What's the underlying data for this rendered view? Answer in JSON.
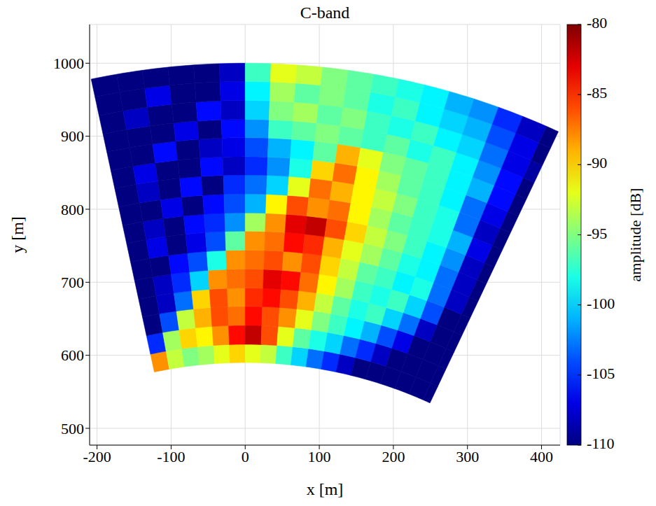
{
  "chart_data": {
    "type": "heatmap",
    "title": "C-band",
    "x_label": "x [m]",
    "y_label": "y [m]",
    "xlim": [
      -210,
      425
    ],
    "ylim": [
      477,
      1053
    ],
    "xticks": [
      -200,
      -100,
      0,
      100,
      200,
      300,
      400
    ],
    "yticks": [
      500,
      600,
      700,
      800,
      900,
      1000
    ],
    "grid": true,
    "range_edges": [
      590,
      615,
      641,
      667,
      692,
      718,
      744,
      770,
      795,
      821,
      847,
      872,
      898,
      923,
      949,
      975,
      1000
    ],
    "angle_edges": [
      -12,
      -10,
      -8,
      -6,
      -4,
      -2,
      0,
      2,
      4,
      6,
      8,
      10,
      12,
      14,
      16,
      18,
      20,
      22,
      24,
      25
    ],
    "cells": [
      [
        -88,
        -93,
        -95,
        -94,
        -92,
        -90,
        -92,
        -93,
        -97,
        -100,
        -103,
        -105,
        -108,
        -110,
        -110,
        -110,
        -110,
        -110,
        -110
      ],
      [
        -105,
        -94,
        -90,
        -91,
        -88,
        -84,
        -82,
        -86,
        -92,
        -96,
        -98,
        -100,
        -103,
        -105,
        -108,
        -110,
        -110,
        -110,
        -110
      ],
      [
        -110,
        -104,
        -93,
        -89,
        -86,
        -87,
        -84,
        -86,
        -88,
        -92,
        -95,
        -97,
        -99,
        -101,
        -104,
        -107,
        -110,
        -110,
        -110
      ],
      [
        -110,
        -108,
        -103,
        -90,
        -86,
        -88,
        -85,
        -84,
        -86,
        -89,
        -93,
        -96,
        -98,
        -97,
        -100,
        -103,
        -108,
        -110,
        -110
      ],
      [
        -110,
        -108,
        -105,
        -100,
        -88,
        -87,
        -86,
        -83,
        -84,
        -87,
        -91,
        -94,
        -97,
        -98,
        -97,
        -100,
        -104,
        -110,
        -110
      ],
      [
        -110,
        -110,
        -106,
        -104,
        -98,
        -88,
        -87,
        -86,
        -88,
        -86,
        -90,
        -93,
        -96,
        -97,
        -99,
        -98,
        -103,
        -108,
        -110
      ],
      [
        -110,
        -107,
        -110,
        -107,
        -104,
        -96,
        -88,
        -87,
        -84,
        -85,
        -89,
        -92,
        -94,
        -96,
        -98,
        -99,
        -103,
        -108,
        -110
      ],
      [
        -110,
        -108,
        -110,
        -106,
        -105,
        -102,
        -94,
        -88,
        -83,
        -82,
        -86,
        -90,
        -93,
        -95,
        -97,
        -99,
        -102,
        -108,
        -110
      ],
      [
        -110,
        -110,
        -107,
        -110,
        -106,
        -104,
        -101,
        -91,
        -86,
        -88,
        -87,
        -91,
        -94,
        -96,
        -97,
        -98,
        -101,
        -107,
        -110
      ],
      [
        -110,
        -108,
        -110,
        -106,
        -110,
        -105,
        -103,
        -100,
        -92,
        -87,
        -89,
        -91,
        -93,
        -95,
        -97,
        -98,
        -103,
        -108,
        -110
      ],
      [
        -110,
        -107,
        -110,
        -110,
        -106,
        -108,
        -105,
        -102,
        -98,
        -90,
        -87,
        -91,
        -94,
        -96,
        -97,
        -99,
        -103,
        -107,
        -110
      ],
      [
        -110,
        -110,
        -106,
        -110,
        -108,
        -107,
        -104,
        -101,
        -99,
        -96,
        -89,
        -92,
        -95,
        -96,
        -97,
        -99,
        -101,
        -106,
        -110
      ],
      [
        -110,
        -110,
        -110,
        -107,
        -110,
        -106,
        -102,
        -97,
        -96,
        -95,
        -96,
        -97,
        -96,
        -98,
        -97,
        -99,
        -102,
        -106,
        -110
      ],
      [
        -110,
        -108,
        -110,
        -110,
        -106,
        -108,
        -100,
        -95,
        -94,
        -96,
        -95,
        -97,
        -98,
        -97,
        -99,
        -100,
        -103,
        -107,
        -109
      ],
      [
        -110,
        -110,
        -107,
        -110,
        -110,
        -107,
        -99,
        -94,
        -96,
        -95,
        -96,
        -98,
        -97,
        -99,
        -100,
        -101,
        -104,
        -107,
        -110
      ],
      [
        -110,
        -110,
        -110,
        -110,
        -110,
        -108,
        -97,
        -92,
        -93,
        -95,
        -96,
        -97,
        -98,
        -99,
        -101,
        -102,
        -105,
        -108,
        -110
      ]
    ],
    "colorbar": {
      "range": [
        -110,
        -80
      ],
      "ticks": [
        -110,
        -105,
        -100,
        -95,
        -90,
        -85,
        -80
      ],
      "label": "amplitude [dB]"
    }
  }
}
